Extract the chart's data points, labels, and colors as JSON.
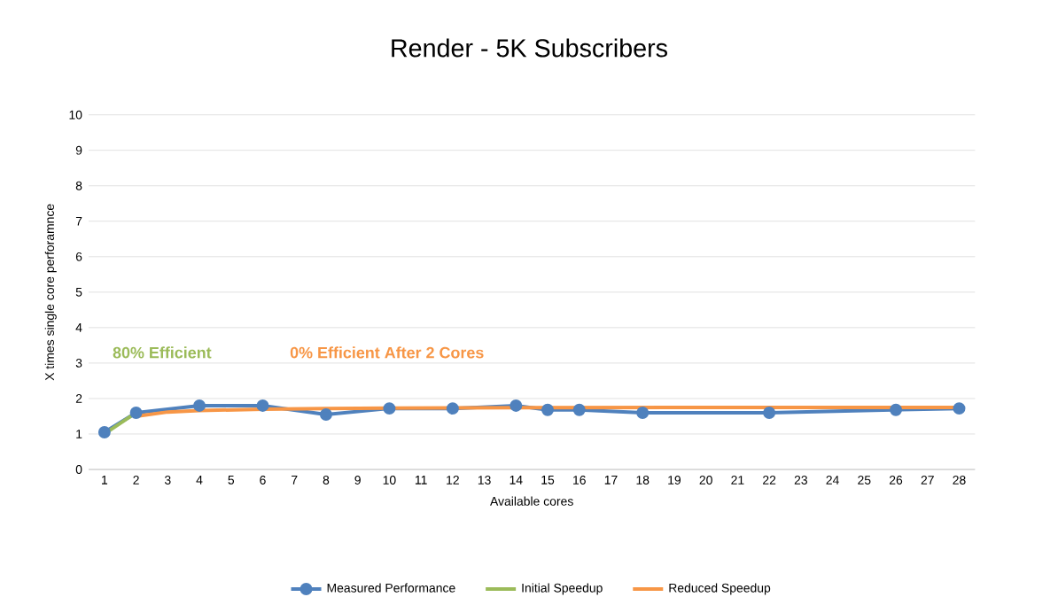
{
  "chart_data": {
    "type": "line",
    "title": "Render - 5K Subscribers",
    "xlabel": "Available cores",
    "ylabel": "X times single core perforamnce",
    "xlim": [
      0.5,
      28.5
    ],
    "xticks": [
      1,
      2,
      3,
      4,
      5,
      6,
      7,
      8,
      9,
      10,
      11,
      12,
      13,
      14,
      15,
      16,
      17,
      18,
      19,
      20,
      21,
      22,
      23,
      24,
      25,
      26,
      27,
      28
    ],
    "ylim": [
      0,
      10
    ],
    "yticks": [
      0,
      1,
      2,
      3,
      4,
      5,
      6,
      7,
      8,
      9,
      10
    ],
    "grid": "y",
    "legend": "bottom",
    "series": [
      {
        "name": "Measured Performance",
        "color": "#4f81bd",
        "marker": "circle",
        "x": [
          1,
          2,
          4,
          6,
          8,
          10,
          12,
          14,
          15,
          16,
          18,
          22,
          26,
          28
        ],
        "values": [
          1.05,
          1.6,
          1.8,
          1.8,
          1.55,
          1.72,
          1.72,
          1.8,
          1.68,
          1.68,
          1.6,
          1.6,
          1.68,
          1.72
        ]
      },
      {
        "name": "Initial Speedup",
        "color": "#9bbb59",
        "marker": "none",
        "x": [
          1,
          2
        ],
        "values": [
          1.0,
          1.6
        ]
      },
      {
        "name": "Reduced Speedup",
        "color": "#f79646",
        "marker": "none",
        "x": [
          2,
          3,
          4,
          6,
          8,
          10,
          14,
          20,
          28
        ],
        "values": [
          1.5,
          1.62,
          1.66,
          1.7,
          1.72,
          1.73,
          1.74,
          1.75,
          1.75
        ]
      }
    ],
    "annotations": [
      "80% Efficient",
      "0% Efficient After 2 Cores"
    ]
  }
}
